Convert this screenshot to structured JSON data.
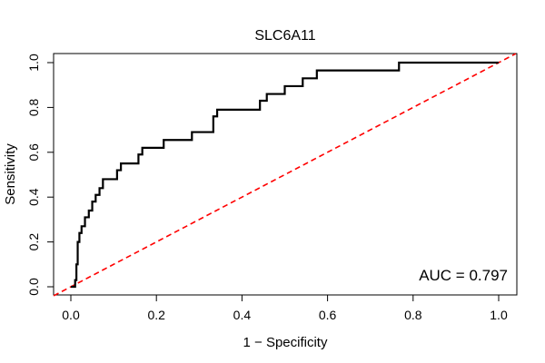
{
  "chart_data": {
    "type": "line",
    "title": "SLC6A11",
    "xlabel": "1 − Specificity",
    "ylabel": "Sensitivity",
    "xlim": [
      0.0,
      1.0
    ],
    "ylim": [
      0.0,
      1.0
    ],
    "xticks": [
      "0.0",
      "0.2",
      "0.4",
      "0.6",
      "0.8",
      "1.0"
    ],
    "yticks": [
      "0.0",
      "0.2",
      "0.4",
      "0.6",
      "0.8",
      "1.0"
    ],
    "annotation": "AUC = 0.797",
    "series": [
      {
        "name": "ROC curve",
        "color": "#000000",
        "x": [
          0.0,
          0.01,
          0.01,
          0.013,
          0.013,
          0.016,
          0.016,
          0.02,
          0.02,
          0.025,
          0.025,
          0.033,
          0.033,
          0.042,
          0.042,
          0.05,
          0.05,
          0.058,
          0.058,
          0.067,
          0.067,
          0.075,
          0.075,
          0.083,
          0.083,
          0.108,
          0.108,
          0.117,
          0.117,
          0.142,
          0.142,
          0.158,
          0.158,
          0.167,
          0.167,
          0.208,
          0.208,
          0.217,
          0.217,
          0.283,
          0.283,
          0.292,
          0.292,
          0.333,
          0.333,
          0.342,
          0.342,
          0.442,
          0.442,
          0.45,
          0.45,
          0.458,
          0.458,
          0.5,
          0.5,
          0.542,
          0.542,
          0.575,
          0.575,
          0.767,
          0.767,
          1.0
        ],
        "y": [
          0.0,
          0.0,
          0.03,
          0.03,
          0.1,
          0.1,
          0.2,
          0.2,
          0.24,
          0.24,
          0.27,
          0.27,
          0.31,
          0.31,
          0.34,
          0.34,
          0.38,
          0.38,
          0.41,
          0.41,
          0.44,
          0.44,
          0.48,
          0.48,
          0.48,
          0.48,
          0.52,
          0.52,
          0.55,
          0.55,
          0.55,
          0.55,
          0.59,
          0.59,
          0.62,
          0.62,
          0.62,
          0.62,
          0.655,
          0.655,
          0.69,
          0.69,
          0.69,
          0.69,
          0.76,
          0.76,
          0.79,
          0.79,
          0.83,
          0.83,
          0.83,
          0.83,
          0.86,
          0.86,
          0.895,
          0.895,
          0.93,
          0.93,
          0.965,
          0.965,
          1.0,
          1.0
        ]
      },
      {
        "name": "Reference diagonal",
        "color": "#ff0000",
        "style": "dashed",
        "x": [
          0.0,
          1.0
        ],
        "y": [
          0.0,
          1.0
        ]
      }
    ],
    "colors": {
      "roc": "#000000",
      "reference": "#ff0000",
      "frame": "#000000"
    }
  }
}
